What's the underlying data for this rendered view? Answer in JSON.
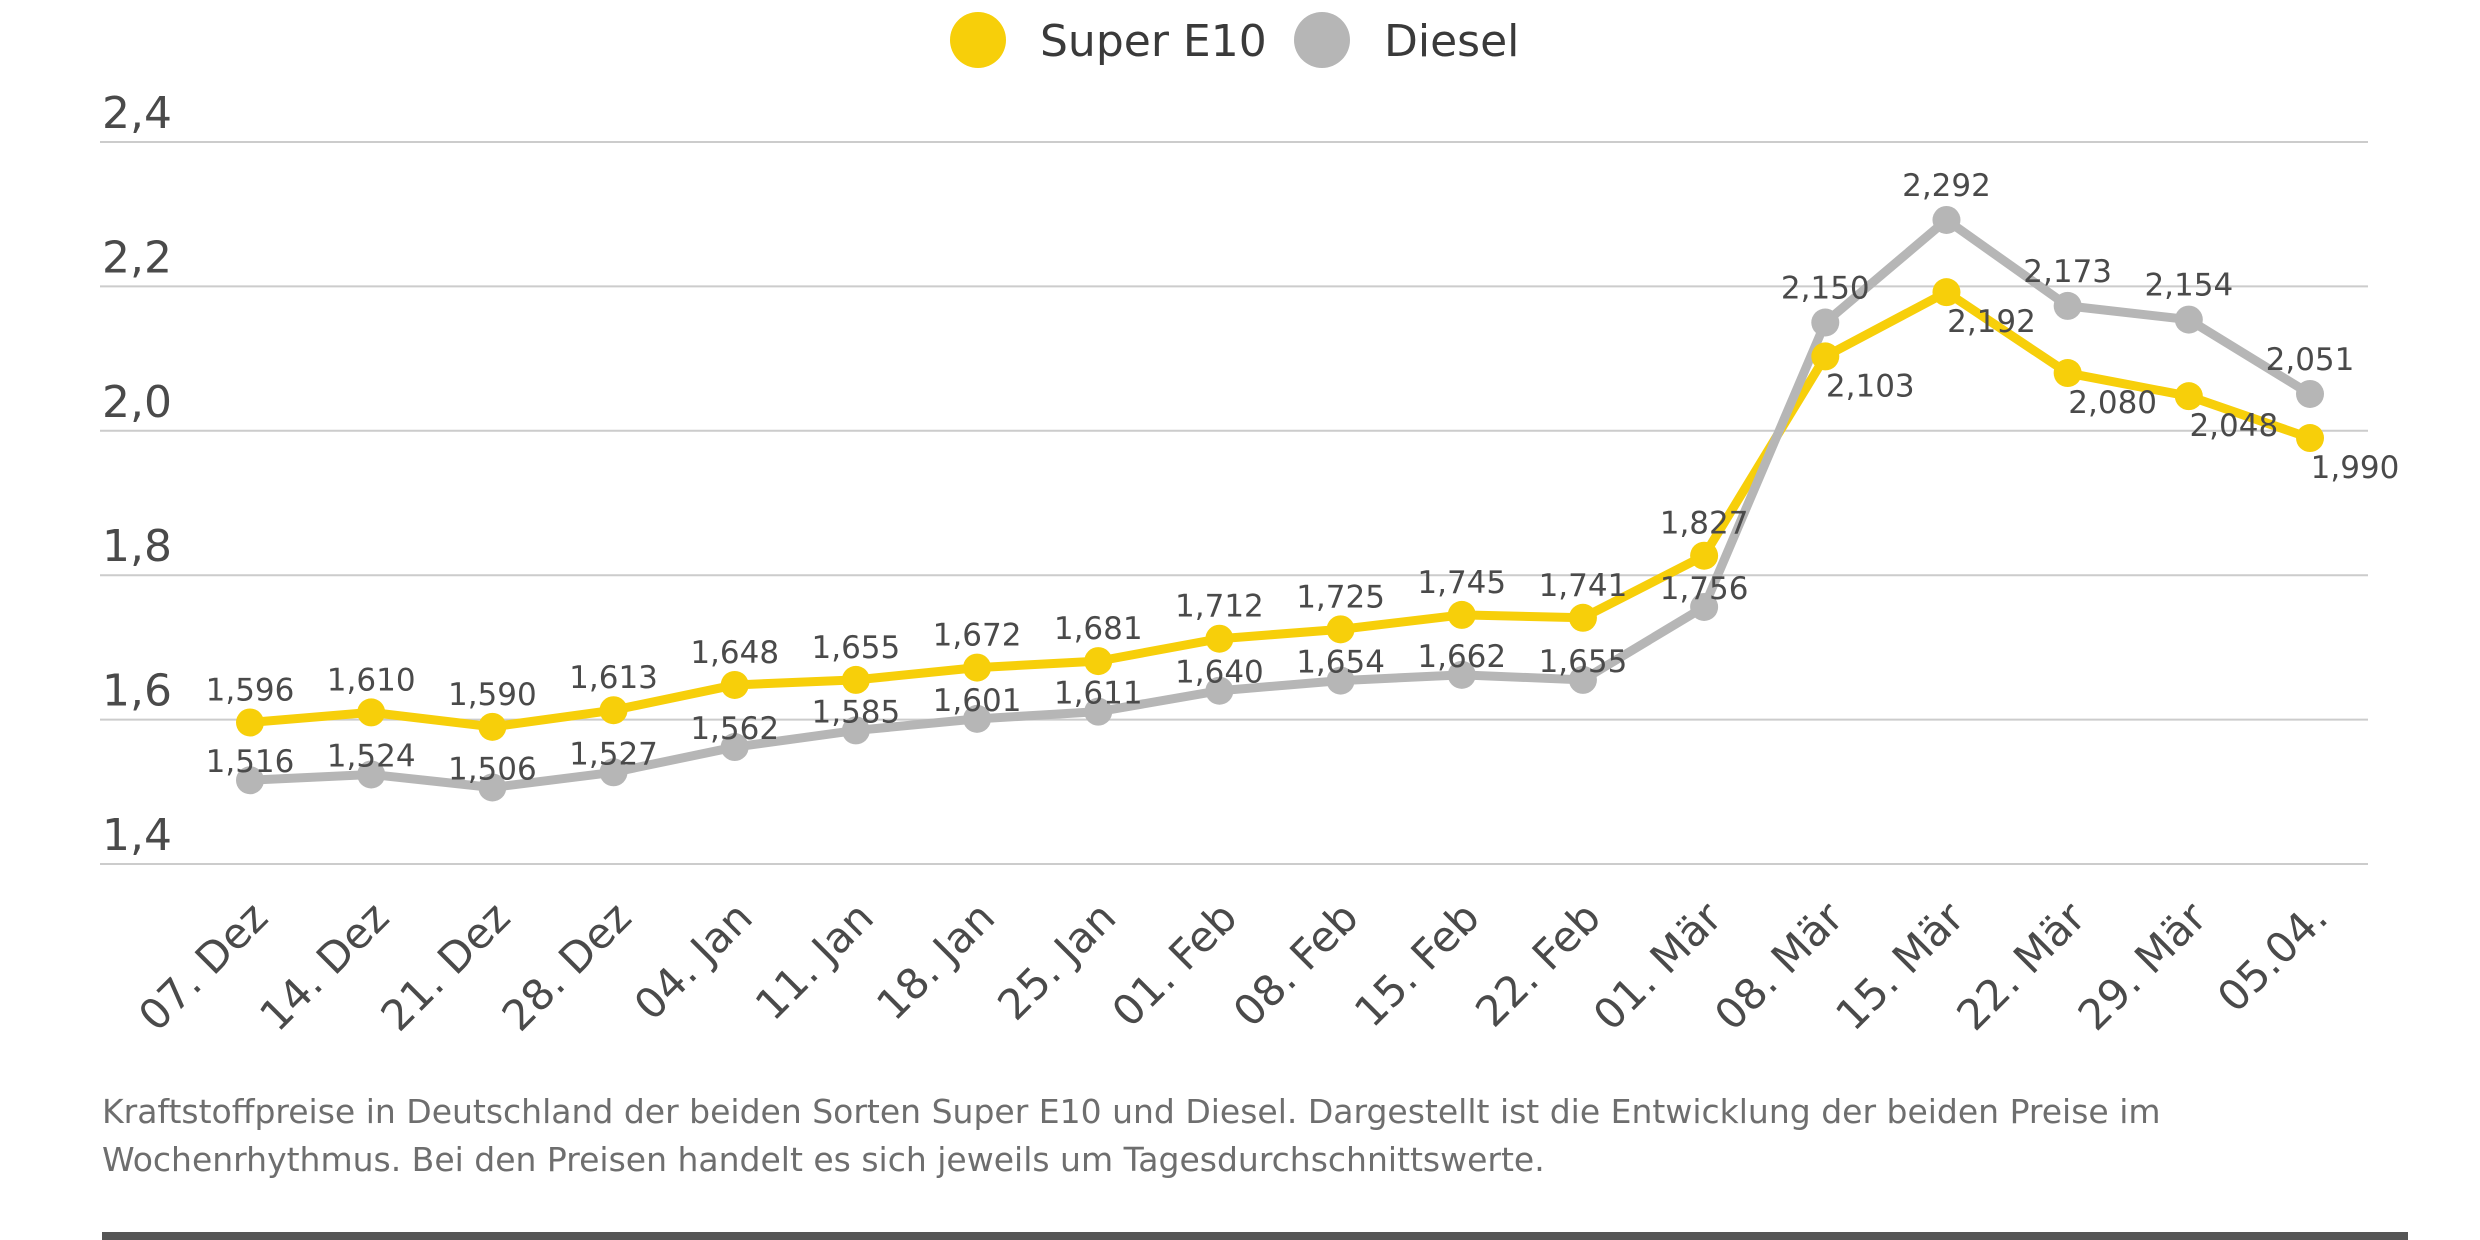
{
  "chart_data": {
    "type": "line",
    "title": "",
    "xlabel": "",
    "ylabel": "",
    "categories": [
      "07. Dez",
      "14. Dez",
      "21. Dez",
      "28. Dez",
      "04. Jan",
      "11. Jan",
      "18. Jan",
      "25. Jan",
      "01. Feb",
      "08. Feb",
      "15. Feb",
      "22. Feb",
      "01. Mär",
      "08. Mär",
      "15. Mär",
      "22. Mär",
      "29. Mär",
      "05.04."
    ],
    "ylim": [
      1.4,
      2.4
    ],
    "yticks": [
      1.4,
      1.6,
      1.8,
      2.0,
      2.2,
      2.4
    ],
    "ytick_labels": [
      "1,4",
      "1,6",
      "1,8",
      "2,0",
      "2,2",
      "2,4"
    ],
    "grid": true,
    "legend_position": "top-center",
    "series": [
      {
        "name": "Super E10",
        "color": "#f7cf0a",
        "values": [
          1.596,
          1.61,
          1.59,
          1.613,
          1.648,
          1.655,
          1.672,
          1.681,
          1.712,
          1.725,
          1.745,
          1.741,
          1.827,
          2.103,
          2.192,
          2.08,
          2.048,
          1.99
        ],
        "labels": [
          "1,596",
          "1,610",
          "1,590",
          "1,613",
          "1,648",
          "1,655",
          "1,672",
          "1,681",
          "1,712",
          "1,725",
          "1,745",
          "1,741",
          "1,827",
          "2,103",
          "2,192",
          "2,080",
          "2,048",
          "1,990"
        ]
      },
      {
        "name": "Diesel",
        "color": "#b6b6b6",
        "values": [
          1.516,
          1.524,
          1.506,
          1.527,
          1.562,
          1.585,
          1.601,
          1.611,
          1.64,
          1.654,
          1.662,
          1.655,
          1.756,
          2.15,
          2.292,
          2.173,
          2.154,
          2.051
        ],
        "labels": [
          "1,516",
          "1,524",
          "1,506",
          "1,527",
          "1,562",
          "1,585",
          "1,601",
          "1,611",
          "1,640",
          "1,654",
          "1,662",
          "1,655",
          "1,756",
          "2,150",
          "2,292",
          "2,173",
          "2,154",
          "2,051"
        ]
      }
    ]
  },
  "caption": "Kraftstoffpreise in Deutschland der beiden Sorten Super E10 und Diesel. Dargestellt ist die Entwicklung der beiden Preise im Wochenrhythmus. Bei den Preisen handelt es sich jeweils um Tagesdurchschnittswerte."
}
